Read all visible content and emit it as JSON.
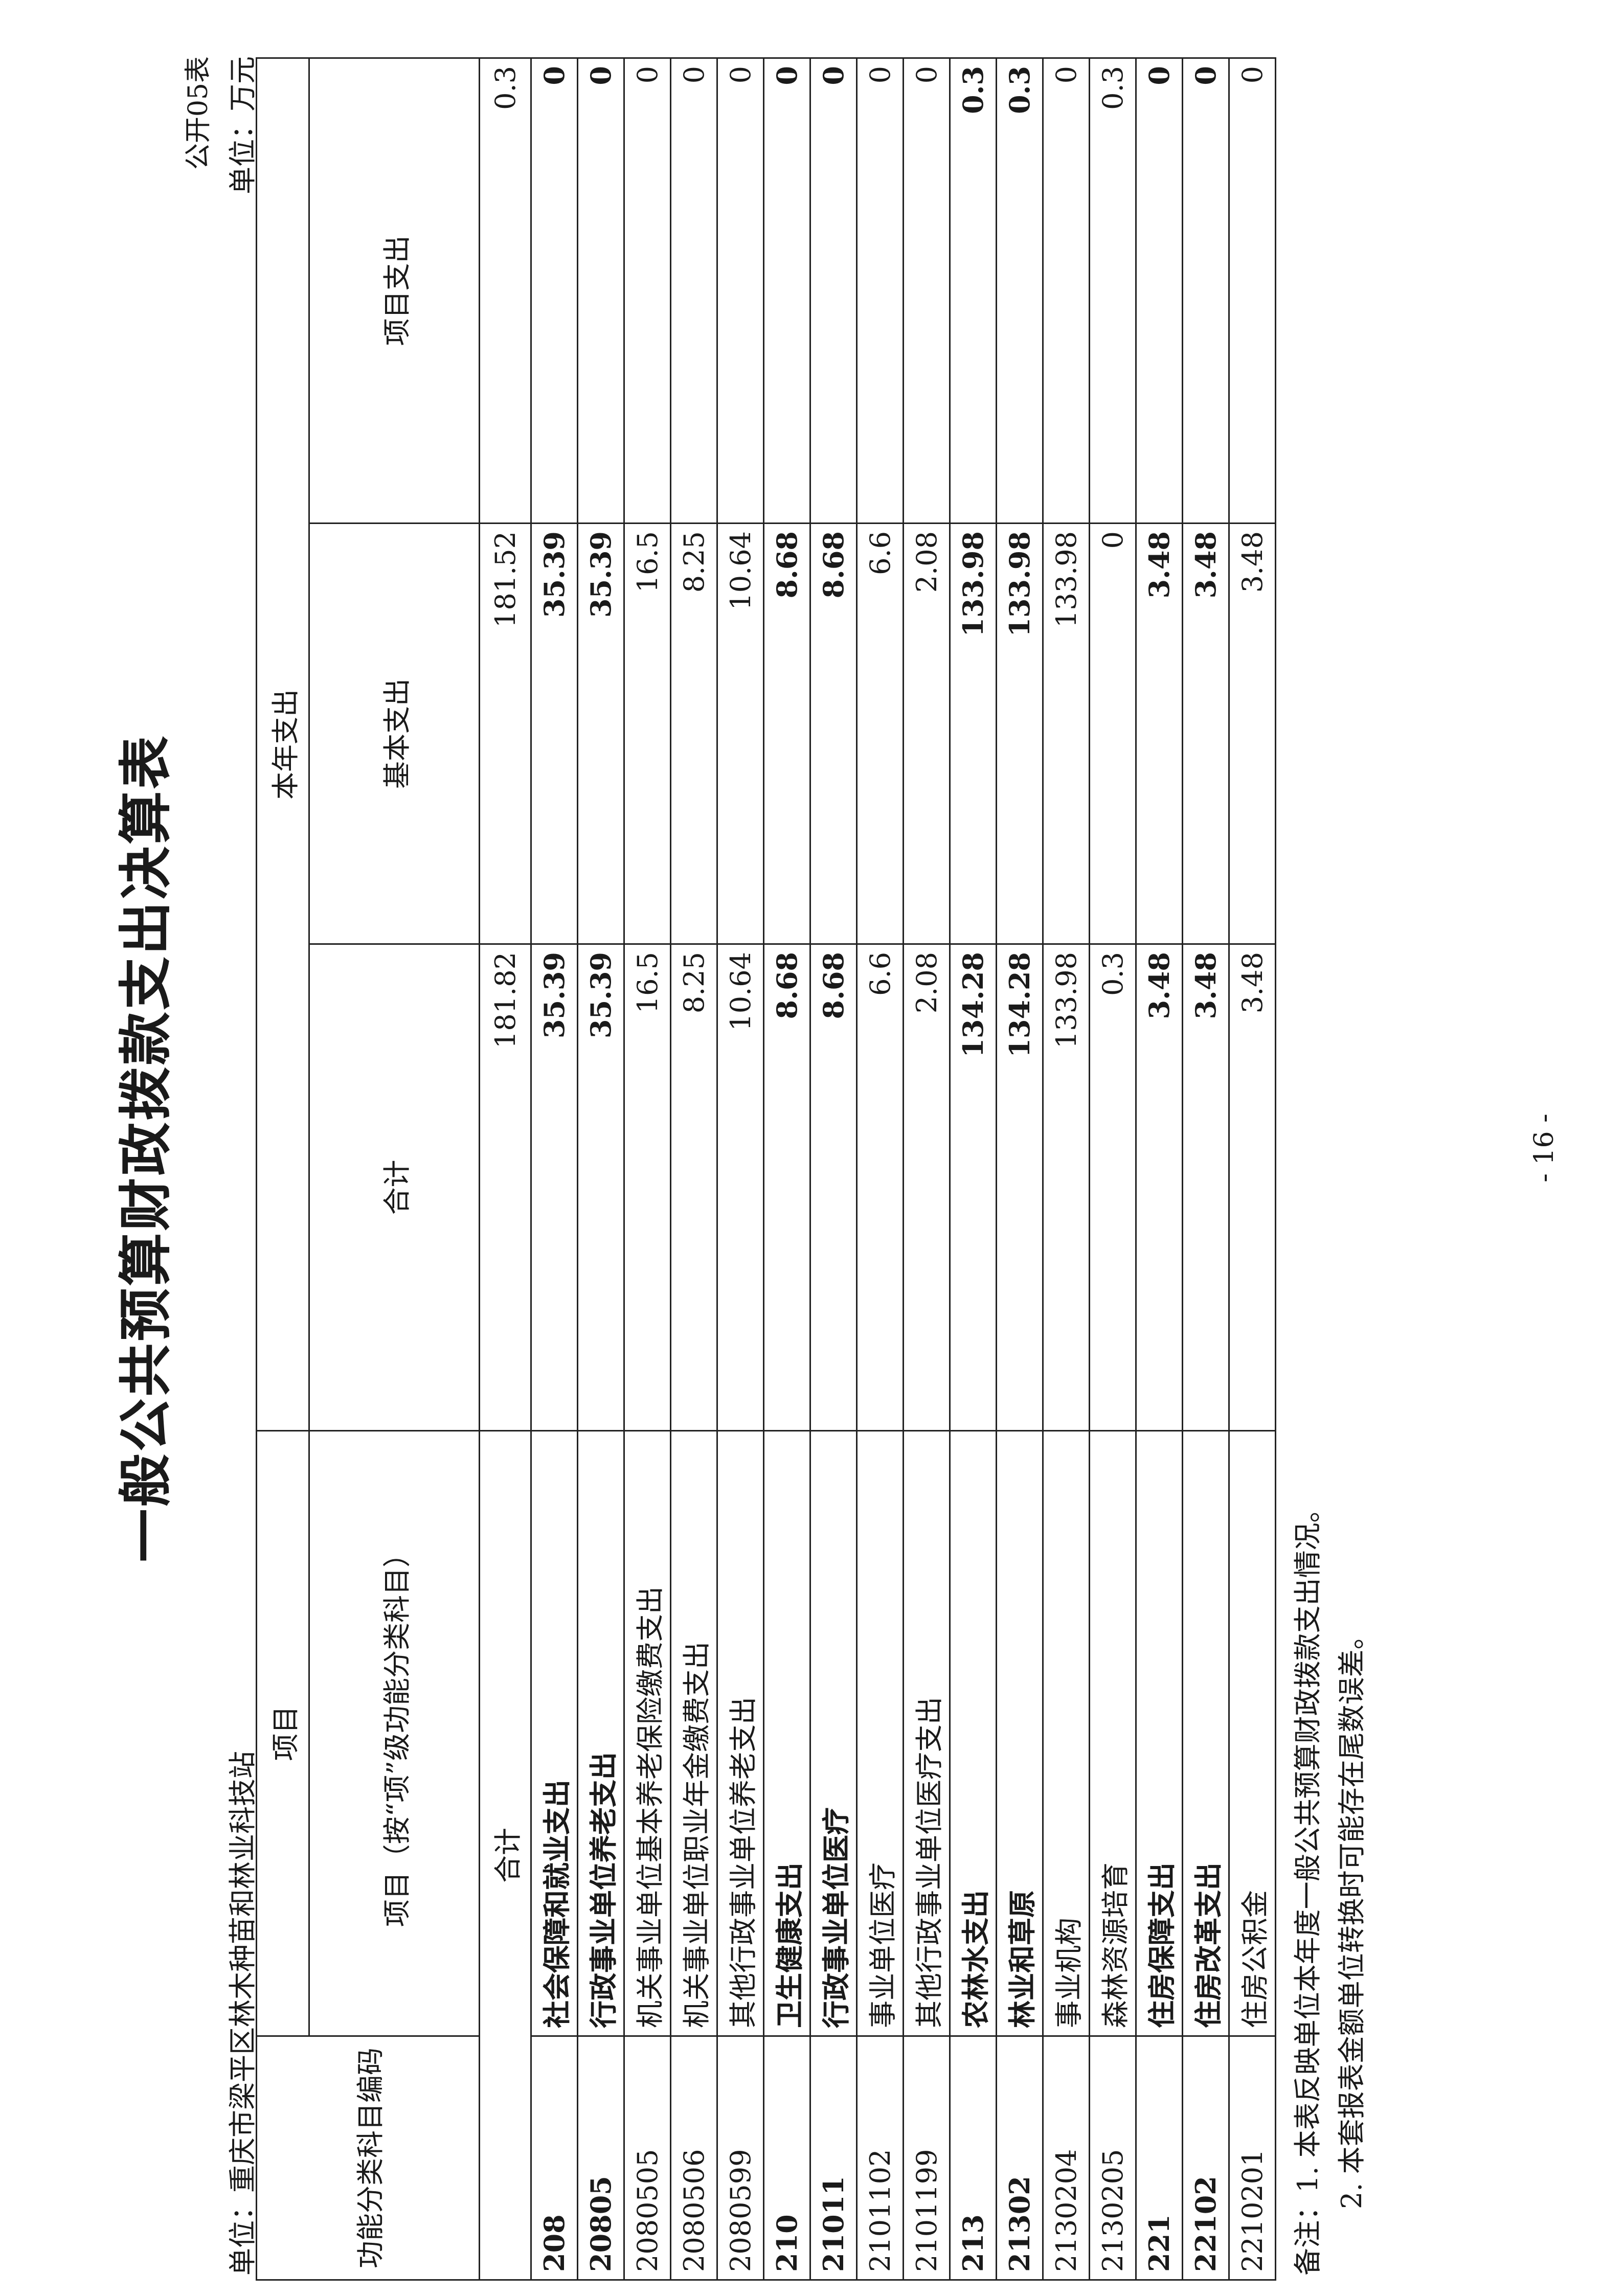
{
  "title": "一般公共预算财政拨款支出决算表",
  "form_no": "公开05表",
  "unit_org": "单位：重庆市梁平区林木种苗和林业科技站",
  "unit_currency": "单位：万元",
  "headers": {
    "code": "功能分类科目编码",
    "item_group": "项目",
    "item": "项目（按“项”级功能分类科目）",
    "current_year": "本年支出",
    "total": "合计",
    "basic": "基本支出",
    "project": "项目支出"
  },
  "total_row": {
    "label": "合计",
    "total": "181.82",
    "basic": "181.52",
    "project": "0.3"
  },
  "rows": [
    {
      "code": "208",
      "name": "社会保障和就业支出",
      "total": "35.39",
      "basic": "35.39",
      "project": "0",
      "emphasis": true
    },
    {
      "code": "20805",
      "name": "行政事业单位养老支出",
      "total": "35.39",
      "basic": "35.39",
      "project": "0",
      "emphasis": true
    },
    {
      "code": "2080505",
      "name": "机关事业单位基本养老保险缴费支出",
      "total": "16.5",
      "basic": "16.5",
      "project": "0",
      "emphasis": false
    },
    {
      "code": "2080506",
      "name": "机关事业单位职业年金缴费支出",
      "total": "8.25",
      "basic": "8.25",
      "project": "0",
      "emphasis": false
    },
    {
      "code": "2080599",
      "name": "其他行政事业单位养老支出",
      "total": "10.64",
      "basic": "10.64",
      "project": "0",
      "emphasis": false
    },
    {
      "code": "210",
      "name": "卫生健康支出",
      "total": "8.68",
      "basic": "8.68",
      "project": "0",
      "emphasis": true
    },
    {
      "code": "21011",
      "name": "行政事业单位医疗",
      "total": "8.68",
      "basic": "8.68",
      "project": "0",
      "emphasis": true
    },
    {
      "code": "2101102",
      "name": "事业单位医疗",
      "total": "6.6",
      "basic": "6.6",
      "project": "0",
      "emphasis": false
    },
    {
      "code": "2101199",
      "name": "其他行政事业单位医疗支出",
      "total": "2.08",
      "basic": "2.08",
      "project": "0",
      "emphasis": false
    },
    {
      "code": "213",
      "name": "农林水支出",
      "total": "134.28",
      "basic": "133.98",
      "project": "0.3",
      "emphasis": true
    },
    {
      "code": "21302",
      "name": "林业和草原",
      "total": "134.28",
      "basic": "133.98",
      "project": "0.3",
      "emphasis": true
    },
    {
      "code": "2130204",
      "name": "事业机构",
      "total": "133.98",
      "basic": "133.98",
      "project": "0",
      "emphasis": false
    },
    {
      "code": "2130205",
      "name": "森林资源培育",
      "total": "0.3",
      "basic": "0",
      "project": "0.3",
      "emphasis": false
    },
    {
      "code": "221",
      "name": "住房保障支出",
      "total": "3.48",
      "basic": "3.48",
      "project": "0",
      "emphasis": true
    },
    {
      "code": "22102",
      "name": "住房改革支出",
      "total": "3.48",
      "basic": "3.48",
      "project": "0",
      "emphasis": true
    },
    {
      "code": "2210201",
      "name": "住房公积金",
      "total": "3.48",
      "basic": "3.48",
      "project": "0",
      "emphasis": false
    }
  ],
  "notes": {
    "line1": "备注：1. 本表反映单位本年度一般公共预算财政拨款支出情况。",
    "line2": "2. 本套报表金额单位转换时可能存在尾数误差。"
  },
  "page_number": "- 16 -"
}
